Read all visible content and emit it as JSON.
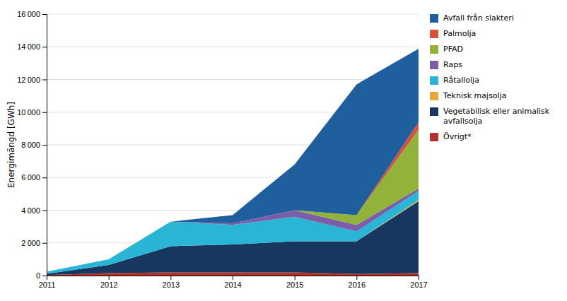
{
  "chart_data": {
    "type": "area",
    "stacked": true,
    "x": [
      2011,
      2012,
      2013,
      2014,
      2015,
      2016,
      2017
    ],
    "series": [
      {
        "name": "Övrigt*",
        "color": "#b5312a",
        "values": [
          30,
          150,
          200,
          200,
          200,
          100,
          150
        ]
      },
      {
        "name": "Vegetabilisk eller animalisk\navfallsolja",
        "color": "#17375e",
        "values": [
          80,
          500,
          1600,
          1700,
          1900,
          2000,
          4400
        ]
      },
      {
        "name": "Teknisk majsolja",
        "color": "#e8a838",
        "values": [
          0,
          0,
          0,
          0,
          0,
          0,
          80
        ]
      },
      {
        "name": "Råtallolja",
        "color": "#29b5d6",
        "values": [
          130,
          350,
          1500,
          1200,
          1500,
          600,
          550
        ]
      },
      {
        "name": "Raps",
        "color": "#7b5ea7",
        "values": [
          0,
          0,
          0,
          100,
          400,
          400,
          150
        ]
      },
      {
        "name": "PFAD",
        "color": "#92b33a",
        "values": [
          0,
          0,
          0,
          0,
          0,
          600,
          3600
        ]
      },
      {
        "name": "Palmolja",
        "color": "#d94f3d",
        "values": [
          0,
          0,
          0,
          0,
          0,
          0,
          450
        ]
      },
      {
        "name": "Avfall från slakteri",
        "color": "#1f5f9e",
        "values": [
          0,
          0,
          0,
          500,
          2800,
          8000,
          4500
        ]
      }
    ],
    "ylabel": "Energimängd [GWh]",
    "xlim": [
      2011,
      2017
    ],
    "xticks": [
      2011,
      2012,
      2013,
      2014,
      2015,
      2016,
      2017
    ],
    "ylim": [
      0,
      16000
    ],
    "yticks": [
      0,
      {
        "value": 2000,
        "label": "2 000"
      },
      {
        "value": 4000,
        "label": "4 000"
      },
      {
        "value": 6000,
        "label": "6 000"
      },
      {
        "value": 8000,
        "label": "8 000"
      },
      {
        "value": 10000,
        "label": "10 000"
      },
      {
        "value": 12000,
        "label": "12 000"
      },
      {
        "value": 14000,
        "label": "14 000"
      },
      {
        "value": 16000,
        "label": "16 000"
      }
    ],
    "grid": true,
    "legend": "right"
  }
}
